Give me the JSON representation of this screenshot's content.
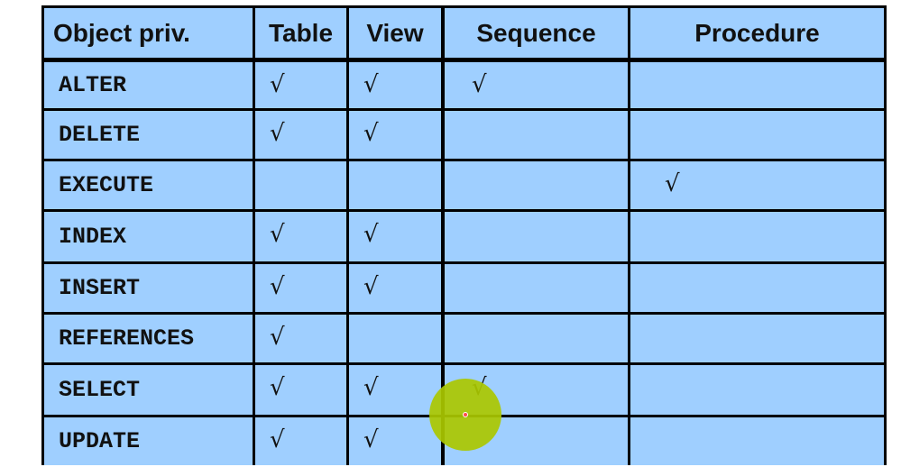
{
  "table": {
    "columns": [
      "Object priv.",
      "Table",
      "View",
      "Sequence",
      "Procedure"
    ],
    "rows": [
      {
        "privilege": "ALTER",
        "marks": [
          "√",
          "√",
          "√",
          ""
        ]
      },
      {
        "privilege": "DELETE",
        "marks": [
          "√",
          "√",
          "",
          ""
        ]
      },
      {
        "privilege": "EXECUTE",
        "marks": [
          "",
          "",
          "",
          "√"
        ]
      },
      {
        "privilege": "INDEX",
        "marks": [
          "√",
          "√",
          "",
          ""
        ]
      },
      {
        "privilege": "INSERT",
        "marks": [
          "√",
          "√",
          "",
          ""
        ]
      },
      {
        "privilege": "REFERENCES",
        "marks": [
          "√",
          "",
          "",
          ""
        ]
      },
      {
        "privilege": "SELECT",
        "marks": [
          "√",
          "√",
          "√",
          ""
        ]
      },
      {
        "privilege": "UPDATE",
        "marks": [
          "√",
          "√",
          "",
          ""
        ]
      }
    ]
  },
  "colors": {
    "cell_background": "#9fcfff",
    "grid_lines": "#000000",
    "cursor_highlight": "#aac800"
  }
}
